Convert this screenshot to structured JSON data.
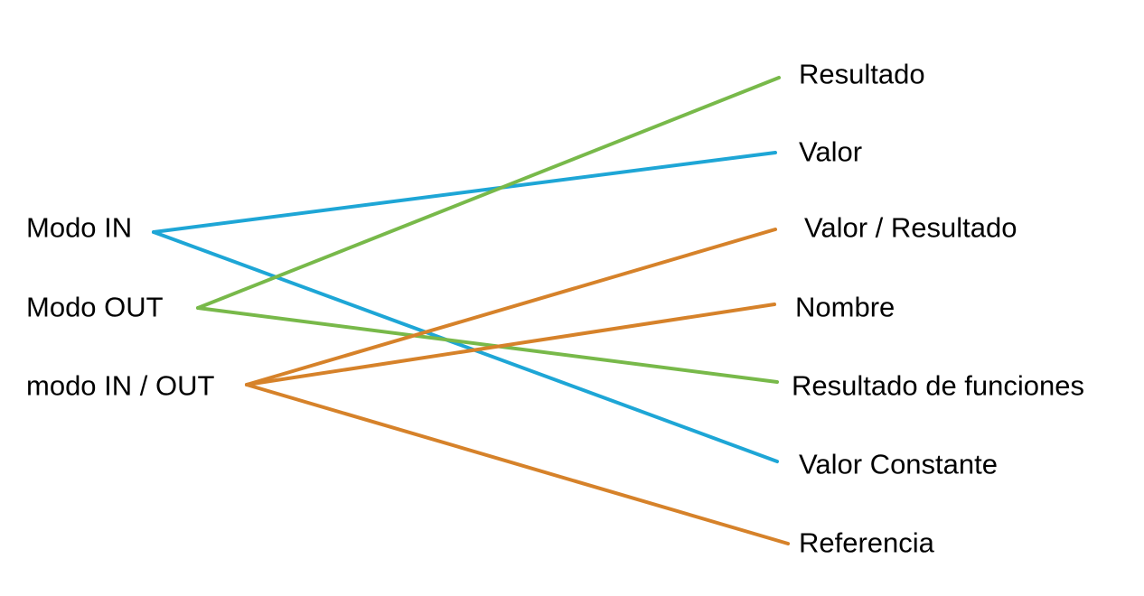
{
  "left_items": {
    "in": "Modo IN",
    "out": "Modo OUT",
    "inout": "modo IN / OUT"
  },
  "right_items": {
    "resultado": "Resultado",
    "valor": "Valor",
    "valor_resultado": "Valor / Resultado",
    "nombre": "Nombre",
    "resultado_funciones": "Resultado de funciones",
    "valor_constante": "Valor Constante",
    "referencia": "Referencia"
  },
  "colors": {
    "in": "#1ea6d6",
    "out": "#78b94a",
    "inout": "#d6822a"
  },
  "connections": [
    {
      "from": "in",
      "to": "valor"
    },
    {
      "from": "in",
      "to": "valor_constante"
    },
    {
      "from": "out",
      "to": "resultado"
    },
    {
      "from": "out",
      "to": "resultado_funciones"
    },
    {
      "from": "inout",
      "to": "valor_resultado"
    },
    {
      "from": "inout",
      "to": "nombre"
    },
    {
      "from": "inout",
      "to": "referencia"
    }
  ]
}
